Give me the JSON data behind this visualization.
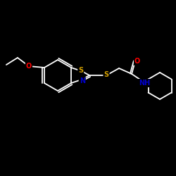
{
  "background_color": "#000000",
  "bond_color": "#ffffff",
  "atom_colors": {
    "S": "#d4a000",
    "N": "#0000cd",
    "O": "#ff0000",
    "NH": "#0000cd"
  },
  "figsize": [
    2.5,
    2.5
  ],
  "dpi": 100,
  "bond_lw": 1.3,
  "font_size": 7
}
